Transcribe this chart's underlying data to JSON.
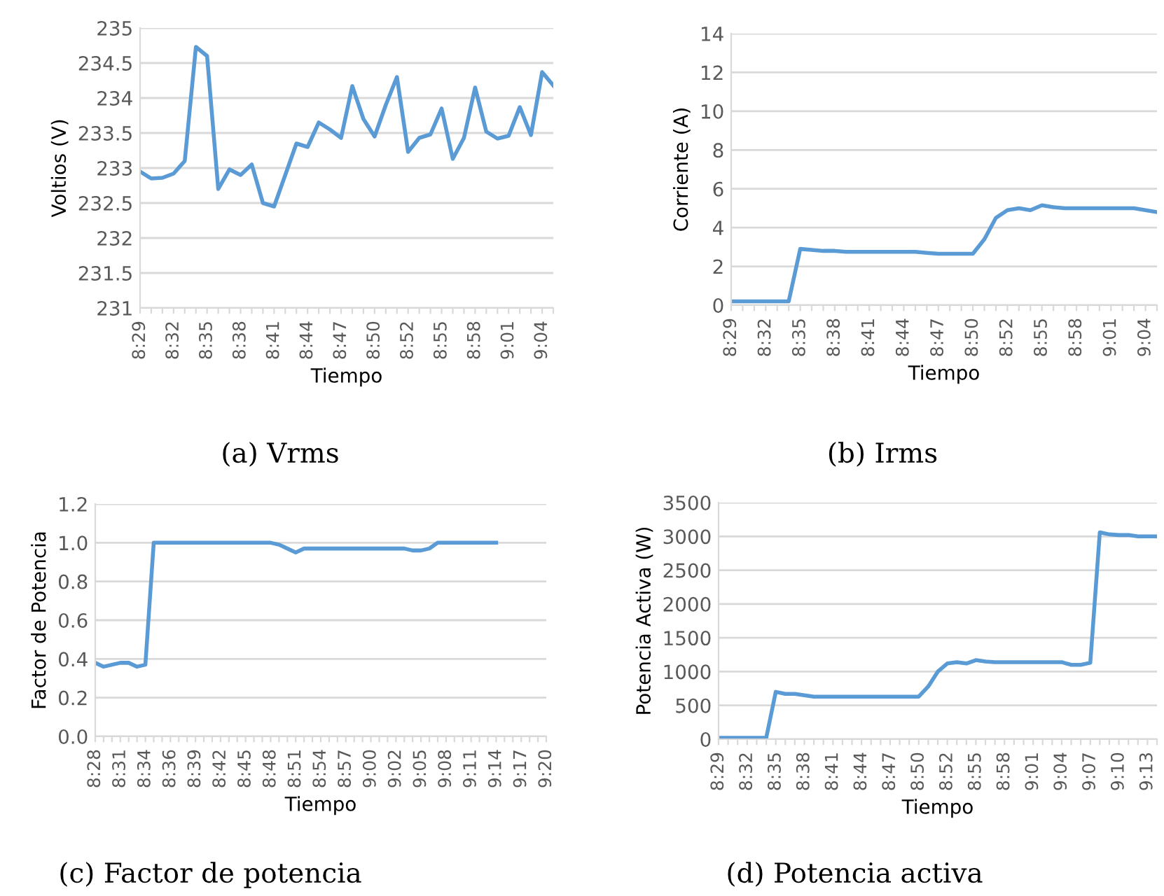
{
  "chart_data": [
    {
      "type": "line",
      "xlabel": "Tiempo",
      "ylabel": "Voltios (V)",
      "grid": "y",
      "marker": "none",
      "line_style": "solid",
      "categories": [
        "8:29",
        null,
        null,
        "8:32",
        null,
        null,
        "8:35",
        null,
        null,
        "8:38",
        null,
        null,
        "8:41",
        null,
        null,
        "8:44",
        null,
        null,
        "8:47",
        null,
        null,
        "8:50",
        null,
        null,
        "8:52",
        null,
        null,
        "8:55",
        null,
        null,
        "8:58",
        null,
        null,
        "9:01",
        null,
        null,
        "9:04",
        null
      ],
      "series": [
        {
          "color": "#5b9bd5",
          "values": [
            232.95,
            232.85,
            232.86,
            232.92,
            233.1,
            234.73,
            234.6,
            232.7,
            232.98,
            232.9,
            233.05,
            232.5,
            232.45,
            232.9,
            233.35,
            233.3,
            233.65,
            233.55,
            233.43,
            234.17,
            233.7,
            233.45,
            233.9,
            234.3,
            233.23,
            233.43,
            233.48,
            233.85,
            233.13,
            233.43,
            234.15,
            233.52,
            233.42,
            233.46,
            233.87,
            233.47,
            234.37,
            234.18
          ]
        }
      ],
      "ylim": [
        231,
        235
      ],
      "yticks": [
        231,
        231.5,
        232,
        232.5,
        233,
        233.5,
        234,
        234.5,
        235
      ],
      "annotations": [
        "(a) Vrms"
      ]
    },
    {
      "type": "line",
      "xlabel": "Tiempo",
      "ylabel": "Corriente (A)",
      "grid": "y",
      "marker": "none",
      "line_style": "solid",
      "categories": [
        "8:29",
        null,
        null,
        "8:32",
        null,
        null,
        "8:35",
        null,
        null,
        "8:38",
        null,
        null,
        "8:41",
        null,
        null,
        "8:44",
        null,
        null,
        "8:47",
        null,
        null,
        "8:50",
        null,
        null,
        "8:52",
        null,
        null,
        "8:55",
        null,
        null,
        "8:58",
        null,
        null,
        "9:01",
        null,
        null,
        "9:04",
        null
      ],
      "series": [
        {
          "color": "#5b9bd5",
          "values": [
            0.2,
            0.2,
            0.2,
            0.2,
            0.2,
            0.2,
            2.9,
            2.85,
            2.8,
            2.8,
            2.75,
            2.75,
            2.75,
            2.75,
            2.75,
            2.75,
            2.75,
            2.7,
            2.65,
            2.65,
            2.65,
            2.65,
            3.4,
            4.5,
            4.9,
            5.0,
            4.9,
            5.15,
            5.05,
            5.0,
            5.0,
            5.0,
            5.0,
            5.0,
            5.0,
            5.0,
            4.9,
            4.8
          ]
        }
      ],
      "ylim": [
        0,
        14
      ],
      "yticks": [
        0,
        2,
        4,
        6,
        8,
        10,
        12,
        14
      ],
      "annotations": [
        "(b) Irms"
      ]
    },
    {
      "type": "line",
      "xlabel": "Tiempo",
      "ylabel": "Factor de Potencia",
      "grid": "y",
      "marker": "none",
      "line_style": "solid",
      "categories": [
        "8:28",
        null,
        null,
        "8:31",
        null,
        null,
        "8:34",
        null,
        null,
        "8:36",
        null,
        null,
        "8:39",
        null,
        null,
        "8:42",
        null,
        null,
        "8:45",
        null,
        null,
        "8:48",
        null,
        null,
        "8:51",
        null,
        null,
        "8:54",
        null,
        null,
        "8:57",
        null,
        null,
        "9:00",
        null,
        null,
        "9:02",
        null,
        null,
        "9:05",
        null,
        null,
        "9:08",
        null,
        null,
        "9:11",
        null,
        null,
        "9:14",
        null,
        null,
        "9:17",
        null,
        null,
        "9:20"
      ],
      "series": [
        {
          "color": "#5b9bd5",
          "values": [
            0.38,
            0.36,
            0.37,
            0.38,
            0.38,
            0.36,
            0.37,
            1.0,
            1.0,
            1.0,
            1.0,
            1.0,
            1.0,
            1.0,
            1.0,
            1.0,
            1.0,
            1.0,
            1.0,
            1.0,
            1.0,
            1.0,
            0.99,
            0.97,
            0.95,
            0.97,
            0.97,
            0.97,
            0.97,
            0.97,
            0.97,
            0.97,
            0.97,
            0.97,
            0.97,
            0.97,
            0.97,
            0.97,
            0.96,
            0.96,
            0.97,
            1.0,
            1.0,
            1.0,
            1.0,
            1.0,
            1.0,
            1.0,
            1.0,
            null,
            null,
            null,
            null,
            null,
            null
          ]
        }
      ],
      "ylim": [
        0,
        1.2
      ],
      "yticks": [
        {
          "value": 0,
          "label": "0.0"
        },
        0.2,
        0.4,
        0.6,
        0.8,
        {
          "value": 1,
          "label": "1.0"
        },
        1.2
      ],
      "annotations": [
        "(c) Factor de potencia"
      ]
    },
    {
      "type": "line",
      "xlabel": "Tiempo",
      "ylabel": "Potencia Activa (W)",
      "grid": "y",
      "marker": "none",
      "line_style": "solid",
      "categories": [
        "8:29",
        null,
        null,
        "8:32",
        null,
        null,
        "8:35",
        null,
        null,
        "8:38",
        null,
        null,
        "8:41",
        null,
        null,
        "8:44",
        null,
        null,
        "8:47",
        null,
        null,
        "8:50",
        null,
        null,
        "8:52",
        null,
        null,
        "8:55",
        null,
        null,
        "8:58",
        null,
        null,
        "9:01",
        null,
        null,
        "9:04",
        null,
        null,
        "9:07",
        null,
        null,
        "9:10",
        null,
        null,
        "9:13",
        null
      ],
      "series": [
        {
          "color": "#5b9bd5",
          "values": [
            20,
            20,
            20,
            20,
            20,
            20,
            700,
            670,
            670,
            650,
            630,
            630,
            630,
            630,
            630,
            630,
            630,
            630,
            630,
            630,
            630,
            630,
            780,
            1000,
            1120,
            1140,
            1120,
            1170,
            1150,
            1140,
            1140,
            1140,
            1140,
            1140,
            1140,
            1140,
            1140,
            1100,
            1100,
            1130,
            3060,
            3030,
            3020,
            3020,
            3000,
            3000,
            3000
          ]
        }
      ],
      "ylim": [
        0,
        3500
      ],
      "yticks": [
        0,
        500,
        1000,
        1500,
        2000,
        2500,
        3000,
        3500
      ],
      "annotations": [
        "(d) Potencia activa"
      ]
    }
  ]
}
